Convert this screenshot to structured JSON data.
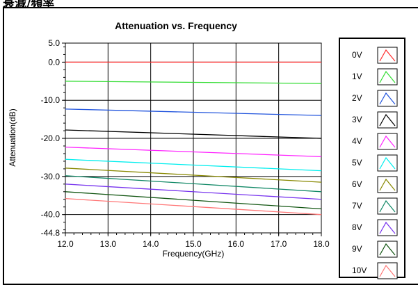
{
  "caption": "衰減/頻率",
  "chart_data": {
    "type": "line",
    "title": "Attenuation vs. Frequency",
    "xlabel": "Frequency(GHz)",
    "ylabel": "Attenuation(dB)",
    "xlim": [
      12.0,
      18.0
    ],
    "ylim": [
      -44.8,
      5.0
    ],
    "x_ticks": [
      "12.0",
      "13.0",
      "14.0",
      "15.0",
      "16.0",
      "17.0",
      "18.0"
    ],
    "y_ticks": [
      {
        "value": 5.0,
        "label": "5.0"
      },
      {
        "value": 0.0,
        "label": "0.0"
      },
      {
        "value": -10.0,
        "label": "-10.0"
      },
      {
        "value": -20.0,
        "label": "-20.0"
      },
      {
        "value": -30.0,
        "label": "-30.0"
      },
      {
        "value": -40.0,
        "label": "-40.0"
      },
      {
        "value": -44.8,
        "label": "-44.8"
      }
    ],
    "grid": true,
    "legend_position": "right",
    "x": [
      12.0,
      18.0
    ],
    "series": [
      {
        "name": "0V",
        "color": "#ff3030",
        "values": [
          0.0,
          0.0
        ]
      },
      {
        "name": "1V",
        "color": "#33dd33",
        "values": [
          -5.0,
          -5.6
        ]
      },
      {
        "name": "2V",
        "color": "#2255dd",
        "values": [
          -12.3,
          -14.0
        ]
      },
      {
        "name": "3V",
        "color": "#000000",
        "values": [
          -17.8,
          -20.0
        ]
      },
      {
        "name": "4V",
        "color": "#ff22ff",
        "values": [
          -22.3,
          -24.8
        ]
      },
      {
        "name": "5V",
        "color": "#00eeee",
        "values": [
          -25.5,
          -28.5
        ]
      },
      {
        "name": "6V",
        "color": "#888800",
        "values": [
          -27.8,
          -31.5
        ]
      },
      {
        "name": "7V",
        "color": "#118866",
        "values": [
          -29.8,
          -34.0
        ]
      },
      {
        "name": "8V",
        "color": "#7733ee",
        "values": [
          -32.0,
          -36.0
        ]
      },
      {
        "name": "9V",
        "color": "#115511",
        "values": [
          -34.0,
          -38.5
        ]
      },
      {
        "name": "10V",
        "color": "#ff7777",
        "values": [
          -35.8,
          -40.0
        ]
      }
    ]
  }
}
